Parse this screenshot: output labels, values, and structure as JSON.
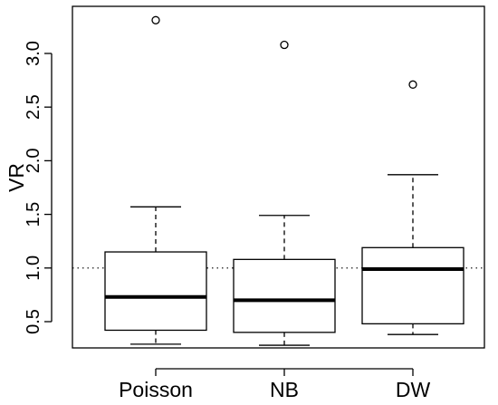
{
  "chart_data": {
    "type": "boxplot",
    "title": "",
    "xlabel": "",
    "ylabel": "VR",
    "ylim": [
      0.3,
      3.4
    ],
    "yticks": [
      0.5,
      1.0,
      1.5,
      2.0,
      2.5,
      3.0
    ],
    "ytick_labels": [
      "0.5",
      "1.0",
      "1.5",
      "2.0",
      "2.5",
      "3.0"
    ],
    "reference_line": {
      "y": 1.0,
      "style": "dotted"
    },
    "grid": false,
    "legend": "none",
    "categories": [
      "Poisson",
      "NB",
      "DW"
    ],
    "boxes": [
      {
        "name": "Poisson",
        "whisker_low": 0.29,
        "q1": 0.42,
        "median": 0.73,
        "q3": 1.15,
        "whisker_high": 1.57,
        "outliers": [
          3.31
        ]
      },
      {
        "name": "NB",
        "whisker_low": 0.28,
        "q1": 0.4,
        "median": 0.7,
        "q3": 1.08,
        "whisker_high": 1.49,
        "outliers": [
          3.08
        ]
      },
      {
        "name": "DW",
        "whisker_low": 0.38,
        "q1": 0.48,
        "median": 0.99,
        "q3": 1.19,
        "whisker_high": 1.87,
        "outliers": [
          2.71
        ]
      }
    ],
    "colors": {
      "box_fill": "#ffffff",
      "stroke": "#000000"
    }
  }
}
